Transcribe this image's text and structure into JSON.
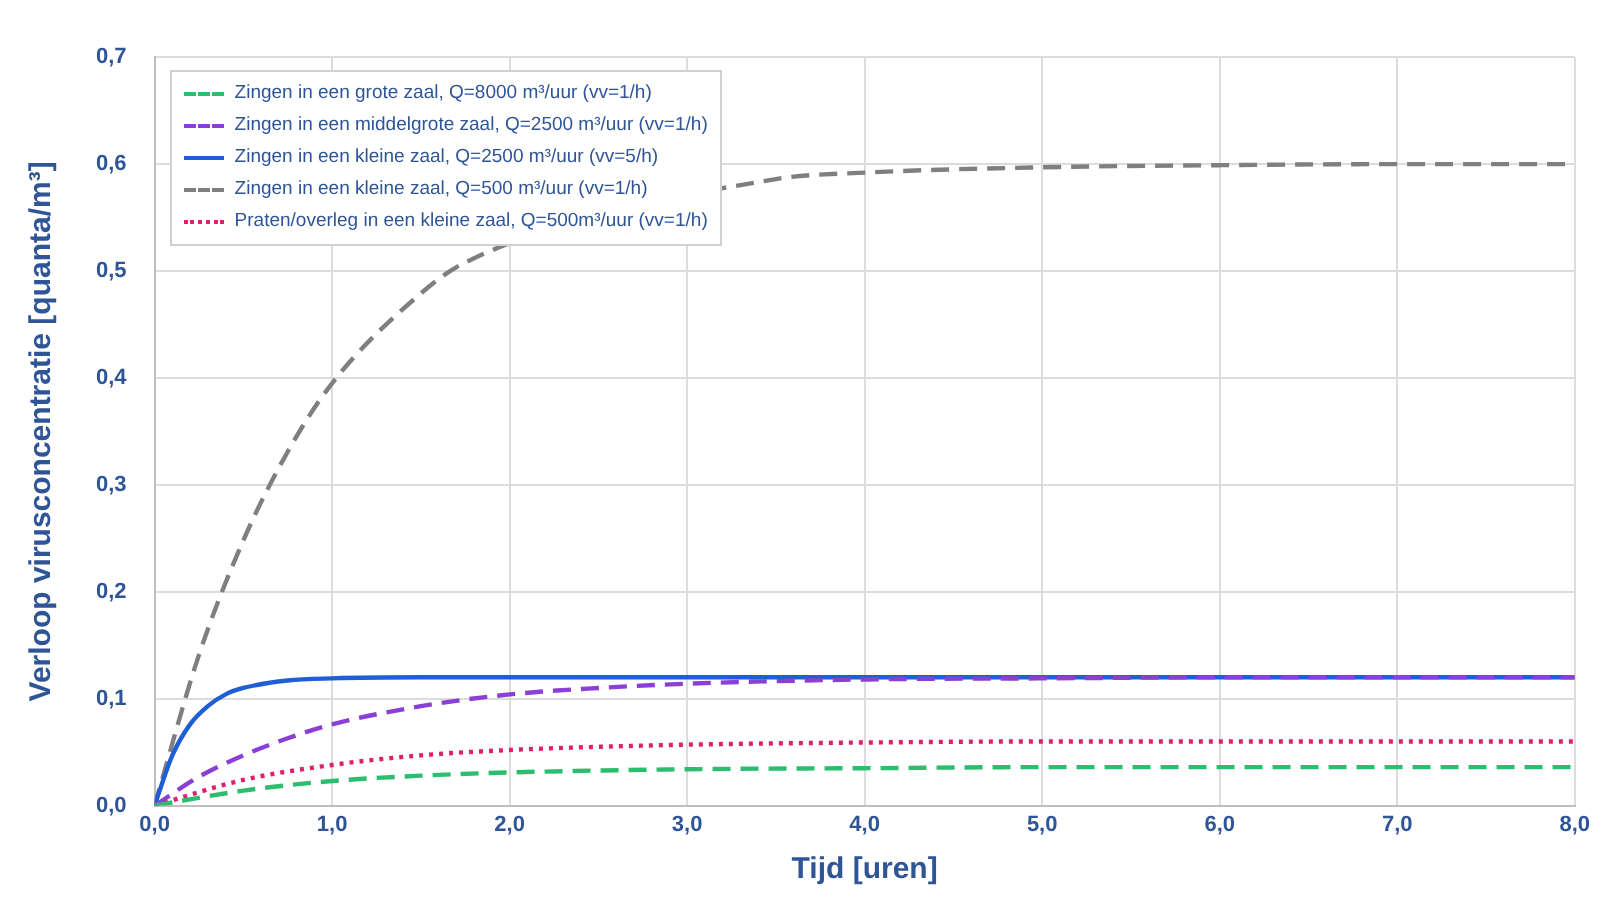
{
  "chart_data": {
    "type": "line",
    "xlabel": "Tijd [uren]",
    "ylabel": "Verloop virusconcentratie [quanta/m³]",
    "xlim": [
      0,
      8
    ],
    "xticks": [
      {
        "value": 0,
        "label": "0,0"
      },
      {
        "value": 1,
        "label": "1,0"
      },
      {
        "value": 2,
        "label": "2,0"
      },
      {
        "value": 3,
        "label": "3,0"
      },
      {
        "value": 4,
        "label": "4,0"
      },
      {
        "value": 5,
        "label": "5,0"
      },
      {
        "value": 6,
        "label": "6,0"
      },
      {
        "value": 7,
        "label": "7,0"
      },
      {
        "value": 8,
        "label": "8,0"
      }
    ],
    "ylim": [
      0,
      0.7
    ],
    "yticks": [
      {
        "value": 0,
        "label": "0,0"
      },
      {
        "value": 0.1,
        "label": "0,1"
      },
      {
        "value": 0.2,
        "label": "0,2"
      },
      {
        "value": 0.3,
        "label": "0,3"
      },
      {
        "value": 0.4,
        "label": "0,4"
      },
      {
        "value": 0.5,
        "label": "0,5"
      },
      {
        "value": 0.6,
        "label": "0,6"
      },
      {
        "value": 0.7,
        "label": "0,7"
      }
    ],
    "grid": true,
    "legend": "top left",
    "marker": "none",
    "series": [
      {
        "name": "Zingen in een grote zaal, Q=8000 m³/uur (vv=1/h)",
        "color": "#2dbd6e",
        "line_style": "dashed",
        "x": [
          0,
          0.5,
          1,
          1.5,
          2,
          3,
          4,
          5,
          6,
          7,
          8
        ],
        "values": [
          0,
          0.014,
          0.023,
          0.028,
          0.031,
          0.034,
          0.035,
          0.036,
          0.036,
          0.036,
          0.036
        ]
      },
      {
        "name": "Zingen in een middelgrote zaal, Q=2500 m³/uur (vv=1/h)",
        "color": "#8a3fd6",
        "line_style": "dashed",
        "x": [
          0,
          0.25,
          0.5,
          0.75,
          1,
          1.5,
          2,
          2.5,
          3,
          4,
          5,
          6,
          7,
          8
        ],
        "values": [
          0,
          0.027,
          0.047,
          0.063,
          0.076,
          0.093,
          0.104,
          0.11,
          0.114,
          0.118,
          0.119,
          0.12,
          0.12,
          0.12
        ]
      },
      {
        "name": "Zingen in een kleine zaal, Q=2500 m³/uur (vv=5/h)",
        "color": "#1f5fd6",
        "line_style": "solid",
        "x": [
          0,
          0.1,
          0.2,
          0.3,
          0.4,
          0.5,
          0.75,
          1,
          1.5,
          2,
          3,
          4,
          5,
          6,
          7,
          8
        ],
        "values": [
          0,
          0.047,
          0.076,
          0.093,
          0.104,
          0.11,
          0.117,
          0.119,
          0.12,
          0.12,
          0.12,
          0.12,
          0.12,
          0.12,
          0.12,
          0.12
        ]
      },
      {
        "name": "Zingen in een kleine zaal, Q=500 m³/uur (vv=1/h)",
        "color": "#7f7f7f",
        "line_style": "dashed",
        "x": [
          0,
          0.25,
          0.5,
          0.75,
          1,
          1.5,
          1.75,
          3.5,
          4,
          5,
          6,
          7,
          8
        ],
        "values": [
          0,
          0.141,
          0.248,
          0.331,
          0.395,
          0.479,
          0.508,
          0.586,
          0.592,
          0.597,
          0.599,
          0.6,
          0.6
        ]
      },
      {
        "name": "Praten/overleg in een kleine zaal, Q=500m³/uur (vv=1/h)",
        "color": "#e0206a",
        "line_style": "dotted",
        "x": [
          0,
          0.5,
          1,
          1.5,
          2,
          2.5,
          3,
          4,
          5,
          6,
          7,
          8
        ],
        "values": [
          0,
          0.024,
          0.038,
          0.047,
          0.052,
          0.055,
          0.057,
          0.059,
          0.06,
          0.06,
          0.06,
          0.06
        ]
      }
    ]
  }
}
